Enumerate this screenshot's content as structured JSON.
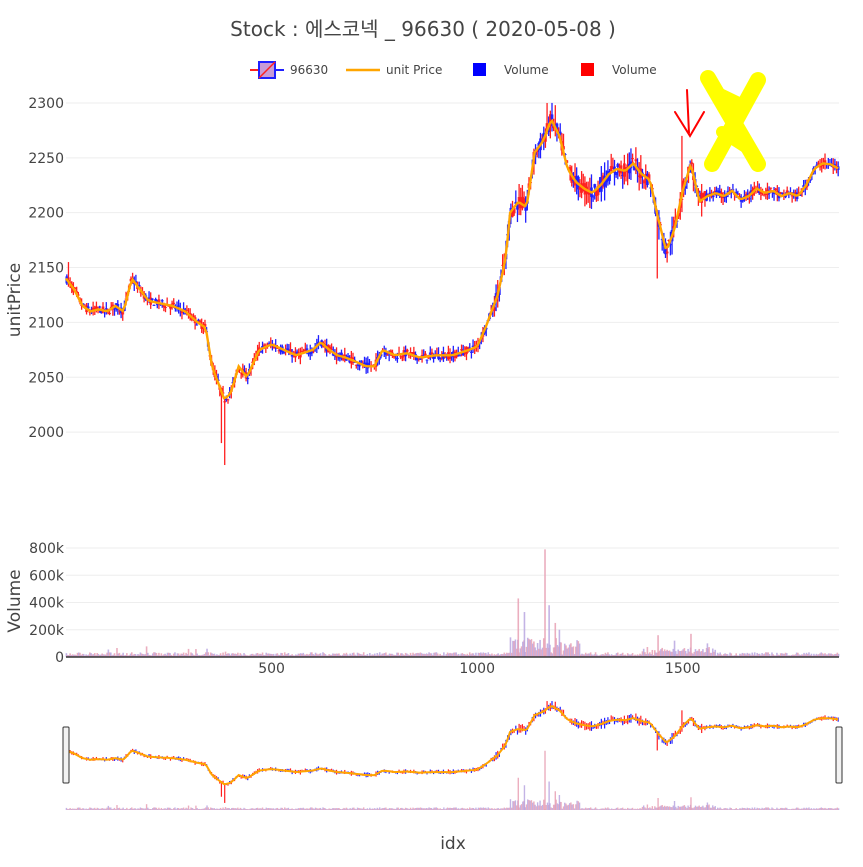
{
  "chart_data": {
    "type": "candlestick",
    "title": "Stock :  에스코넥 _ 96630 ( 2020-05-08 )",
    "xlabel": "idx",
    "ylabel_price": "unitPrice",
    "ylabel_volume": "Volume",
    "legend": [
      {
        "label": "96630",
        "kind": "candle",
        "color": "#1f1fff",
        "down_color": "#ff1f1f"
      },
      {
        "label": "unit Price",
        "kind": "line",
        "color": "#ffa500"
      },
      {
        "label": "Volume",
        "kind": "square",
        "color": "#0000ff"
      },
      {
        "label": "Volume",
        "kind": "square",
        "color": "#ff0000"
      }
    ],
    "xlim": [
      0,
      1880
    ],
    "x_ticks": [
      {
        "value": 500,
        "label": "500"
      },
      {
        "value": 1000,
        "label": "1000"
      },
      {
        "value": 1500,
        "label": "1500"
      }
    ],
    "price_ylim": [
      1960,
      2310
    ],
    "price_ticks": [
      {
        "value": 2000,
        "label": "2000"
      },
      {
        "value": 2050,
        "label": "2050"
      },
      {
        "value": 2100,
        "label": "2100"
      },
      {
        "value": 2150,
        "label": "2150"
      },
      {
        "value": 2200,
        "label": "2200"
      },
      {
        "value": 2250,
        "label": "2250"
      },
      {
        "value": 2300,
        "label": "2300"
      }
    ],
    "volume_ylim": [
      0,
      800000
    ],
    "volume_ticks": [
      {
        "value": 0,
        "label": "0"
      },
      {
        "value": 200000,
        "label": "200k"
      },
      {
        "value": 400000,
        "label": "400k"
      },
      {
        "value": 600000,
        "label": "600k"
      },
      {
        "value": 800000,
        "label": "800k"
      }
    ],
    "price_path": [
      [
        0,
        2140
      ],
      [
        20,
        2130
      ],
      [
        40,
        2115
      ],
      [
        60,
        2110
      ],
      [
        80,
        2112
      ],
      [
        100,
        2110
      ],
      [
        120,
        2115
      ],
      [
        140,
        2110
      ],
      [
        160,
        2140
      ],
      [
        180,
        2130
      ],
      [
        200,
        2120
      ],
      [
        220,
        2118
      ],
      [
        260,
        2115
      ],
      [
        290,
        2110
      ],
      [
        320,
        2100
      ],
      [
        340,
        2095
      ],
      [
        355,
        2060
      ],
      [
        370,
        2045
      ],
      [
        385,
        2030
      ],
      [
        400,
        2035
      ],
      [
        420,
        2060
      ],
      [
        440,
        2050
      ],
      [
        470,
        2075
      ],
      [
        500,
        2080
      ],
      [
        530,
        2075
      ],
      [
        560,
        2070
      ],
      [
        600,
        2075
      ],
      [
        620,
        2082
      ],
      [
        640,
        2075
      ],
      [
        660,
        2070
      ],
      [
        680,
        2068
      ],
      [
        700,
        2065
      ],
      [
        730,
        2060
      ],
      [
        750,
        2060
      ],
      [
        770,
        2075
      ],
      [
        800,
        2070
      ],
      [
        830,
        2072
      ],
      [
        860,
        2068
      ],
      [
        900,
        2070
      ],
      [
        940,
        2070
      ],
      [
        980,
        2075
      ],
      [
        1000,
        2078
      ],
      [
        1020,
        2095
      ],
      [
        1050,
        2125
      ],
      [
        1070,
        2160
      ],
      [
        1080,
        2200
      ],
      [
        1100,
        2210
      ],
      [
        1120,
        2205
      ],
      [
        1140,
        2255
      ],
      [
        1160,
        2265
      ],
      [
        1180,
        2285
      ],
      [
        1200,
        2270
      ],
      [
        1220,
        2240
      ],
      [
        1240,
        2228
      ],
      [
        1260,
        2222
      ],
      [
        1280,
        2218
      ],
      [
        1300,
        2225
      ],
      [
        1320,
        2235
      ],
      [
        1340,
        2240
      ],
      [
        1360,
        2238
      ],
      [
        1380,
        2245
      ],
      [
        1400,
        2235
      ],
      [
        1420,
        2230
      ],
      [
        1440,
        2195
      ],
      [
        1460,
        2165
      ],
      [
        1480,
        2185
      ],
      [
        1500,
        2220
      ],
      [
        1520,
        2245
      ],
      [
        1540,
        2210
      ],
      [
        1560,
        2215
      ],
      [
        1580,
        2218
      ],
      [
        1600,
        2215
      ],
      [
        1620,
        2220
      ],
      [
        1640,
        2212
      ],
      [
        1660,
        2215
      ],
      [
        1680,
        2222
      ],
      [
        1700,
        2218
      ],
      [
        1720,
        2220
      ],
      [
        1740,
        2215
      ],
      [
        1760,
        2218
      ],
      [
        1780,
        2215
      ],
      [
        1800,
        2225
      ],
      [
        1820,
        2240
      ],
      [
        1840,
        2245
      ],
      [
        1860,
        2244
      ],
      [
        1880,
        2240
      ]
    ],
    "volume_peaks": [
      {
        "x": 1100,
        "value": 430000
      },
      {
        "x": 1115,
        "value": 330000
      },
      {
        "x": 1165,
        "value": 790000
      },
      {
        "x": 1175,
        "value": 380000
      },
      {
        "x": 1190,
        "value": 250000
      },
      {
        "x": 1200,
        "value": 200000
      },
      {
        "x": 1440,
        "value": 160000
      },
      {
        "x": 1480,
        "value": 120000
      },
      {
        "x": 1520,
        "value": 170000
      },
      {
        "x": 1560,
        "value": 100000
      }
    ]
  },
  "annotations": {
    "yellow_mark": "X",
    "yellow_color": "#ffff00",
    "arrow_color": "#ff0000"
  }
}
